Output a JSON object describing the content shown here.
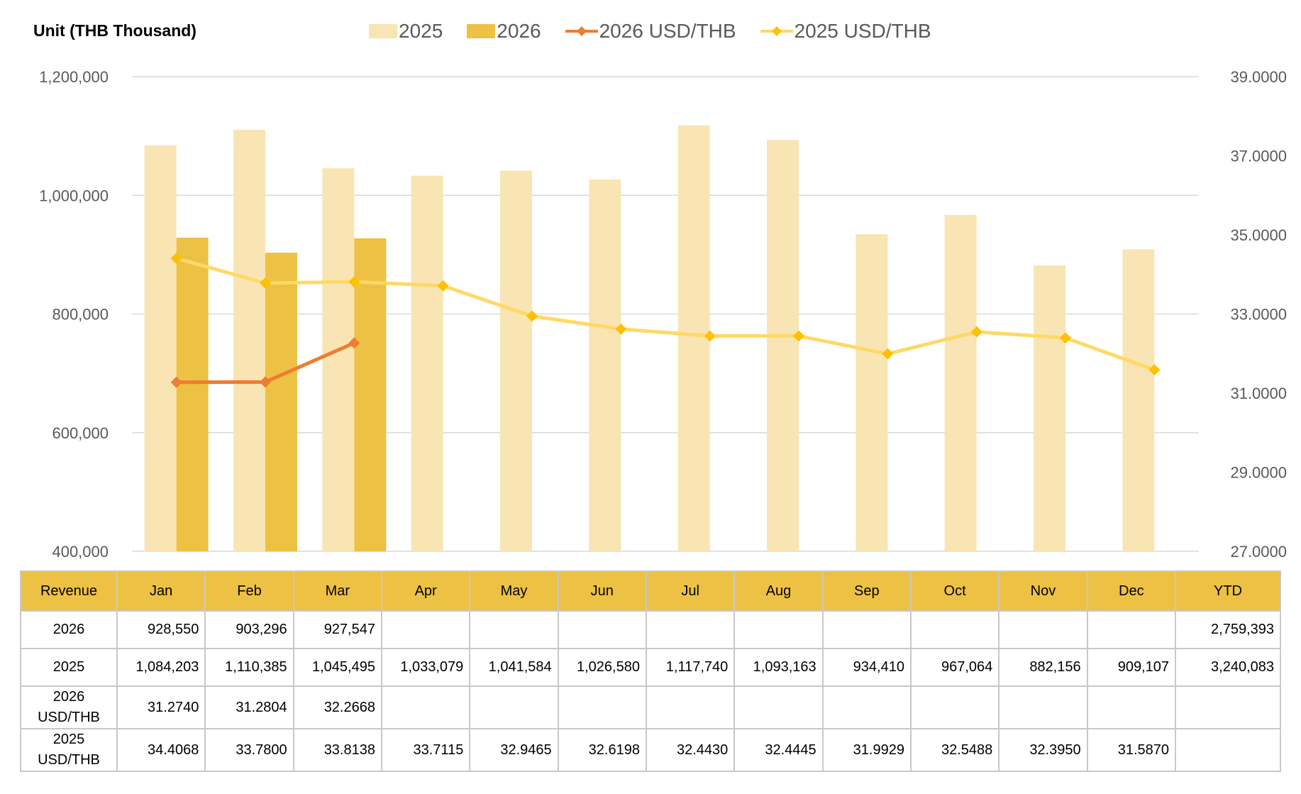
{
  "unit_label": "Unit (THB  Thousand)",
  "legend": [
    {
      "label": "2025",
      "kind": "bar",
      "color": "#f9e5b3"
    },
    {
      "label": "2026",
      "kind": "bar",
      "color": "#edc143"
    },
    {
      "label": "2026 USD/THB",
      "kind": "line",
      "color": "#ed7d31"
    },
    {
      "label": "2025 USD/THB",
      "kind": "line",
      "color": "#ffd966"
    }
  ],
  "chart_data": {
    "type": "bar",
    "title": "",
    "categories": [
      "Jan",
      "Feb",
      "Mar",
      "Apr",
      "May",
      "Jun",
      "Jul",
      "Aug",
      "Sep",
      "Oct",
      "Nov",
      "Dec"
    ],
    "series": [
      {
        "name": "2025",
        "kind": "bar",
        "axis": "left",
        "color": "#f9e5b3",
        "values": [
          1084203,
          1110385,
          1045495,
          1033079,
          1041584,
          1026580,
          1117740,
          1093163,
          934410,
          967064,
          882156,
          909107
        ]
      },
      {
        "name": "2026",
        "kind": "bar",
        "axis": "left",
        "color": "#edc143",
        "values": [
          928550,
          903296,
          927547,
          null,
          null,
          null,
          null,
          null,
          null,
          null,
          null,
          null
        ]
      },
      {
        "name": "2026 USD/THB",
        "kind": "line",
        "axis": "right",
        "color": "#ed7d31",
        "values": [
          31.274,
          31.2804,
          32.2668,
          null,
          null,
          null,
          null,
          null,
          null,
          null,
          null,
          null
        ]
      },
      {
        "name": "2025 USD/THB",
        "kind": "line",
        "axis": "right",
        "color": "#ffd966",
        "marker_color": "#ffc000",
        "values": [
          34.4068,
          33.78,
          33.8138,
          33.7115,
          32.9465,
          32.6198,
          32.443,
          32.4445,
          31.9929,
          32.5488,
          32.395,
          31.587
        ]
      }
    ],
    "y_left": {
      "min": 400000,
      "max": 1200000,
      "ticks": [
        400000,
        600000,
        800000,
        1000000,
        1200000
      ],
      "tick_labels": [
        "400,000",
        "600,000",
        "800,000",
        "1,000,000",
        "1,200,000"
      ]
    },
    "y_right": {
      "min": 27,
      "max": 39,
      "ticks": [
        27,
        29,
        31,
        33,
        35,
        37,
        39
      ],
      "tick_labels": [
        "27.0000",
        "29.0000",
        "31.0000",
        "33.0000",
        "35.0000",
        "37.0000",
        "39.0000"
      ]
    },
    "grid": true,
    "legend_position": "top"
  },
  "table": {
    "headers": [
      "Revenue",
      "Jan",
      "Feb",
      "Mar",
      "Apr",
      "May",
      "Jun",
      "Jul",
      "Aug",
      "Sep",
      "Oct",
      "Nov",
      "Dec",
      "YTD"
    ],
    "rows": [
      {
        "label": "2026",
        "cells": [
          "928,550",
          "903,296",
          "927,547",
          "",
          "",
          "",
          "",
          "",
          "",
          "",
          "",
          "",
          "2,759,393"
        ]
      },
      {
        "label": "2025",
        "cells": [
          "1,084,203",
          "1,110,385",
          "1,045,495",
          "1,033,079",
          "1,041,584",
          "1,026,580",
          "1,117,740",
          "1,093,163",
          "934,410",
          "967,064",
          "882,156",
          "909,107",
          "3,240,083"
        ]
      },
      {
        "label": "2026\nUSD/THB",
        "cells": [
          "31.2740",
          "31.2804",
          "32.2668",
          "",
          "",
          "",
          "",
          "",
          "",
          "",
          "",
          "",
          ""
        ]
      },
      {
        "label": "2025\nUSD/THB",
        "cells": [
          "34.4068",
          "33.7800",
          "33.8138",
          "33.7115",
          "32.9465",
          "32.6198",
          "32.4430",
          "32.4445",
          "31.9929",
          "32.5488",
          "32.3950",
          "31.5870",
          ""
        ]
      }
    ]
  }
}
